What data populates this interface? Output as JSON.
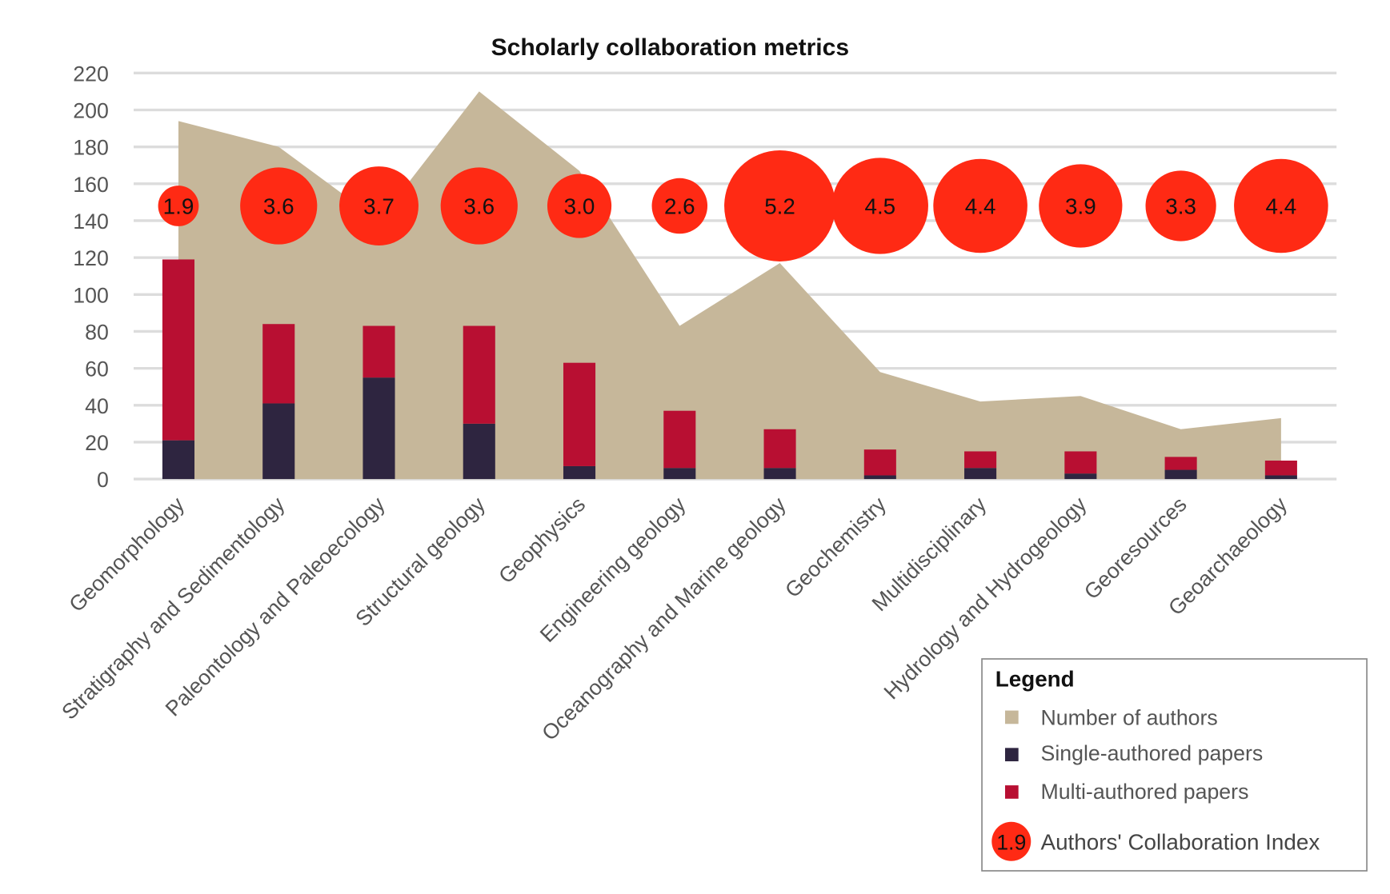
{
  "chart_data": {
    "type": "bar",
    "title": "Scholarly collaboration metrics",
    "xlabel": "",
    "ylabel": "",
    "ylim": [
      0,
      220
    ],
    "yticks": [
      0,
      20,
      40,
      60,
      80,
      100,
      120,
      140,
      160,
      180,
      200,
      220
    ],
    "grid": true,
    "categories": [
      "Geomorphology",
      "Stratigraphy and Sedimentology",
      "Paleontology and Paleoecology",
      "Structural geology",
      "Geophysics",
      "Engineering geology",
      "Oceanography and Marine geology",
      "Geochemistry",
      "Multidisciplinary",
      "Hydrology and Hydrogeology",
      "Georesources",
      "Geoarchaeology"
    ],
    "series": [
      {
        "name": "Number of authors",
        "type": "area",
        "color": "#C6B79A",
        "values": [
          194,
          180,
          140,
          210,
          167,
          83,
          117,
          58,
          42,
          45,
          27,
          33
        ]
      },
      {
        "name": "Single-authored papers",
        "type": "stacked-bar",
        "color": "#2E2540",
        "values": [
          21,
          41,
          55,
          30,
          7,
          6,
          6,
          2,
          6,
          3,
          5,
          2
        ]
      },
      {
        "name": "Multi-authored papers",
        "type": "stacked-bar",
        "color": "#B80F32",
        "values": [
          98,
          43,
          28,
          53,
          56,
          31,
          21,
          14,
          9,
          12,
          7,
          8
        ]
      },
      {
        "name": "Authors' Collaboration Index",
        "type": "bubble",
        "color": "#FF2A14",
        "values": [
          "1.9",
          "3.6",
          "3.7",
          "3.6",
          "3.0",
          "2.6",
          "5.2",
          "4.5",
          "4.4",
          "3.9",
          "3.3",
          "4.4"
        ],
        "y_position": 148
      }
    ],
    "legend": {
      "title": "Legend",
      "position": "bottom-right",
      "sample_bubble_label": "1.9"
    }
  }
}
